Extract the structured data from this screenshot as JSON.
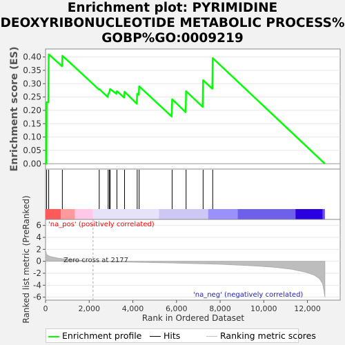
{
  "title": {
    "line1": "Enrichment plot: PYRIMIDINE",
    "line2": "DEOXYRIBONUCLEOTIDE METABOLIC PROCESS%",
    "line3": "GOBP%GO:0009219"
  },
  "chart_data": [
    {
      "type": "line",
      "ylabel": "Enrichment score (ES)",
      "ylim": [
        -0.02,
        0.43
      ],
      "yticks": [
        0.0,
        0.05,
        0.1,
        0.15,
        0.2,
        0.25,
        0.3,
        0.35,
        0.4
      ],
      "ytick_labels": [
        "0.00",
        "0.05",
        "0.10",
        "0.15",
        "0.20",
        "0.25",
        "0.30",
        "0.35",
        "0.40"
      ],
      "xlim": [
        0,
        13500
      ],
      "color": "#00ff00",
      "series": [
        {
          "name": "Enrichment profile",
          "points": [
            [
              0,
              0.0
            ],
            [
              40,
              0.0
            ],
            [
              50,
              0.23
            ],
            [
              130,
              0.23
            ],
            [
              145,
              0.41
            ],
            [
              760,
              0.365
            ],
            [
              770,
              0.405
            ],
            [
              2450,
              0.278
            ],
            [
              2460,
              0.28
            ],
            [
              2850,
              0.25
            ],
            [
              2870,
              0.26
            ],
            [
              2910,
              0.265
            ],
            [
              2930,
              0.27
            ],
            [
              2960,
              0.28
            ],
            [
              3250,
              0.262
            ],
            [
              3270,
              0.272
            ],
            [
              3600,
              0.248
            ],
            [
              3620,
              0.27
            ],
            [
              4180,
              0.225
            ],
            [
              4200,
              0.262
            ],
            [
              4270,
              0.258
            ],
            [
              4290,
              0.29
            ],
            [
              5780,
              0.177
            ],
            [
              5800,
              0.242
            ],
            [
              6420,
              0.193
            ],
            [
              6440,
              0.272
            ],
            [
              7200,
              0.213
            ],
            [
              7220,
              0.313
            ],
            [
              7640,
              0.281
            ],
            [
              7660,
              0.396
            ],
            [
              12800,
              0.0
            ]
          ]
        }
      ]
    },
    {
      "type": "hits",
      "series_name": "Hits",
      "hit_positions": [
        50,
        145,
        770,
        2460,
        2870,
        2930,
        2960,
        3270,
        3620,
        4200,
        4290,
        5800,
        6440,
        7220,
        7660
      ],
      "heat_bins": [
        {
          "from": 0,
          "to": 700,
          "color": "#ff5a5a"
        },
        {
          "from": 700,
          "to": 1350,
          "color": "#ff9a9a"
        },
        {
          "from": 1350,
          "to": 2177,
          "color": "#ffc8e6"
        },
        {
          "from": 2177,
          "to": 5200,
          "color": "#e6e2fa"
        },
        {
          "from": 5200,
          "to": 7450,
          "color": "#cdc8f3"
        },
        {
          "from": 7450,
          "to": 8800,
          "color": "#9a91ff"
        },
        {
          "from": 8800,
          "to": 11450,
          "color": "#6e60ea"
        },
        {
          "from": 11450,
          "to": 12700,
          "color": "#2a00e0"
        },
        {
          "from": 12700,
          "to": 12800,
          "color": "#7050e0"
        }
      ]
    },
    {
      "type": "area",
      "ylabel": "Ranked list metric (PreRanked)",
      "xlabel": "Rank in Ordered Dataset",
      "ylim": [
        -6.5,
        7
      ],
      "yticks": [
        -6,
        -4,
        -2,
        0,
        2,
        4,
        6
      ],
      "ytick_labels": [
        "-6",
        "-4",
        "-2",
        "0",
        "2",
        "4",
        "6"
      ],
      "xlim": [
        0,
        13500
      ],
      "xticks": [
        0,
        2000,
        4000,
        6000,
        8000,
        10000,
        12000
      ],
      "xtick_labels": [
        "0",
        "2,000",
        "4,000",
        "6,000",
        "8,000",
        "10,000",
        "12,000"
      ],
      "zero_cross": 2177,
      "series": [
        {
          "name": "Ranking metric scores",
          "points": [
            [
              0,
              1.9
            ],
            [
              50,
              1.1
            ],
            [
              200,
              0.8
            ],
            [
              600,
              0.5
            ],
            [
              1200,
              0.25
            ],
            [
              2177,
              0.0
            ],
            [
              4000,
              -0.15
            ],
            [
              6000,
              -0.3
            ],
            [
              8000,
              -0.5
            ],
            [
              9500,
              -0.75
            ],
            [
              10500,
              -1.0
            ],
            [
              11300,
              -1.35
            ],
            [
              11900,
              -1.8
            ],
            [
              12300,
              -2.3
            ],
            [
              12550,
              -2.9
            ],
            [
              12700,
              -3.8
            ],
            [
              12760,
              -5.0
            ],
            [
              12800,
              -6.0
            ],
            [
              12800,
              0
            ]
          ]
        }
      ],
      "annotations": {
        "pos": "'na_pos' (positively correlated)",
        "neg": "'na_neg' (negatively correlated)",
        "zero": "Zero cross at 2177"
      }
    }
  ],
  "legend": {
    "items": [
      {
        "label": "Enrichment profile",
        "color": "#00ff00"
      },
      {
        "label": "Hits",
        "color": "#000000"
      },
      {
        "label": "Ranking metric scores",
        "color": "#c0c0c0"
      }
    ]
  },
  "colors": {
    "pos_label": "#ff0000",
    "neg_label": "#2020c0"
  }
}
